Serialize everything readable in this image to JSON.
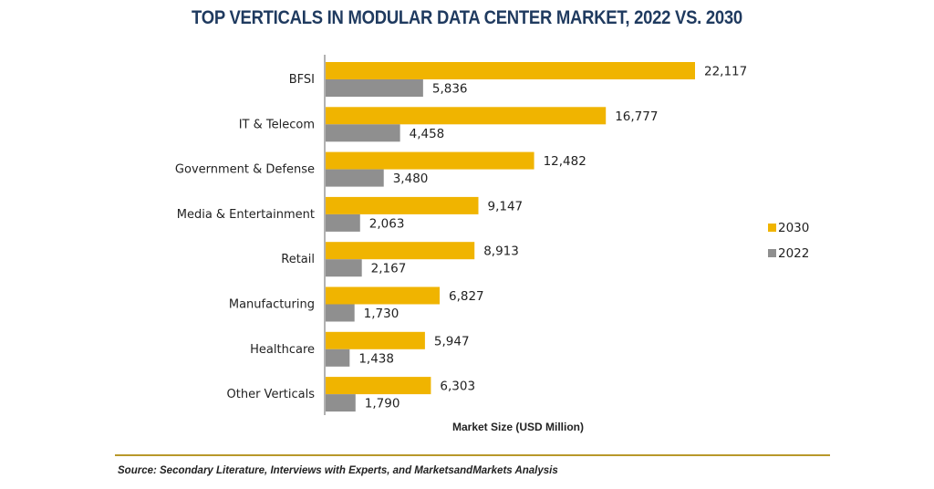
{
  "chart_data": {
    "type": "bar",
    "orientation": "horizontal",
    "title": "TOP VERTICALS IN MODULAR DATA CENTER MARKET, 2022 VS. 2030",
    "xlabel": "Market Size (USD Million)",
    "ylabel": "",
    "categories": [
      "BFSI",
      "IT & Telecom",
      "Government & Defense",
      "Media & Entertainment",
      "Retail",
      "Manufacturing",
      "Healthcare",
      "Other Verticals"
    ],
    "series": [
      {
        "name": "2030",
        "color": "#f0b400",
        "values": [
          22117,
          16777,
          12482,
          9147,
          8913,
          6827,
          5947,
          6303
        ],
        "labels": [
          "22,117",
          "16,777",
          "12,482",
          "9,147",
          "8,913",
          "6,827",
          "5,947",
          "6,303"
        ]
      },
      {
        "name": "2022",
        "color": "#8f8f8f",
        "values": [
          5836,
          4458,
          3480,
          2063,
          2167,
          1730,
          1438,
          1790
        ],
        "labels": [
          "5,836",
          "4,458",
          "3,480",
          "2,063",
          "2,167",
          "1,730",
          "1,438",
          "1,790"
        ]
      }
    ],
    "xlim": [
      0,
      22117
    ],
    "grid": false,
    "legend": "right"
  },
  "source": "Source: Secondary Literature, Interviews with Experts, and MarketsandMarkets Analysis"
}
